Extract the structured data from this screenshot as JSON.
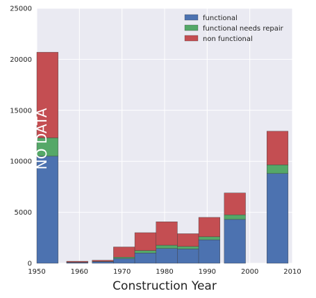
{
  "chart_data": {
    "type": "bar",
    "stacked": true,
    "title": "",
    "xlabel": "Construction Year",
    "ylabel": "",
    "xlim": [
      1950,
      2010
    ],
    "ylim": [
      0,
      25000
    ],
    "x_ticks": [
      1950,
      1960,
      1970,
      1980,
      1990,
      2000,
      2010
    ],
    "x_tick_labels": [
      "1950",
      "1960",
      "1970",
      "1980",
      "1990",
      "2000",
      "2010"
    ],
    "y_ticks": [
      0,
      5000,
      10000,
      15000,
      20000,
      25000
    ],
    "y_tick_labels": [
      "0",
      "5000",
      "10000",
      "15000",
      "20000",
      "25000"
    ],
    "bin_width": 5,
    "bins": [
      1950,
      1955,
      1960,
      1965,
      1970,
      1975,
      1980,
      1985,
      1990,
      1995,
      2000,
      2005
    ],
    "series": [
      {
        "name": "functional",
        "color": "#4c72b0",
        "values": [
          10500,
          80,
          150,
          470,
          1000,
          1450,
          1400,
          2300,
          4300,
          8800,
          0,
          0
        ]
      },
      {
        "name": "functional needs repair",
        "color": "#55a868",
        "values": [
          1800,
          20,
          30,
          130,
          250,
          320,
          250,
          300,
          450,
          850,
          0,
          0
        ]
      },
      {
        "name": "non functional",
        "color": "#c44e52",
        "values": [
          8400,
          100,
          120,
          1000,
          1750,
          2300,
          1250,
          1900,
          2150,
          3300,
          0,
          0
        ]
      }
    ],
    "bar_starts": [
      1950,
      1957,
      1963,
      1968,
      1973,
      1978,
      1983,
      1988,
      1994,
      2004
    ],
    "annotation": "NO DATA",
    "legend_position": "top-right",
    "grid": true,
    "background": "#eaeaf2"
  }
}
